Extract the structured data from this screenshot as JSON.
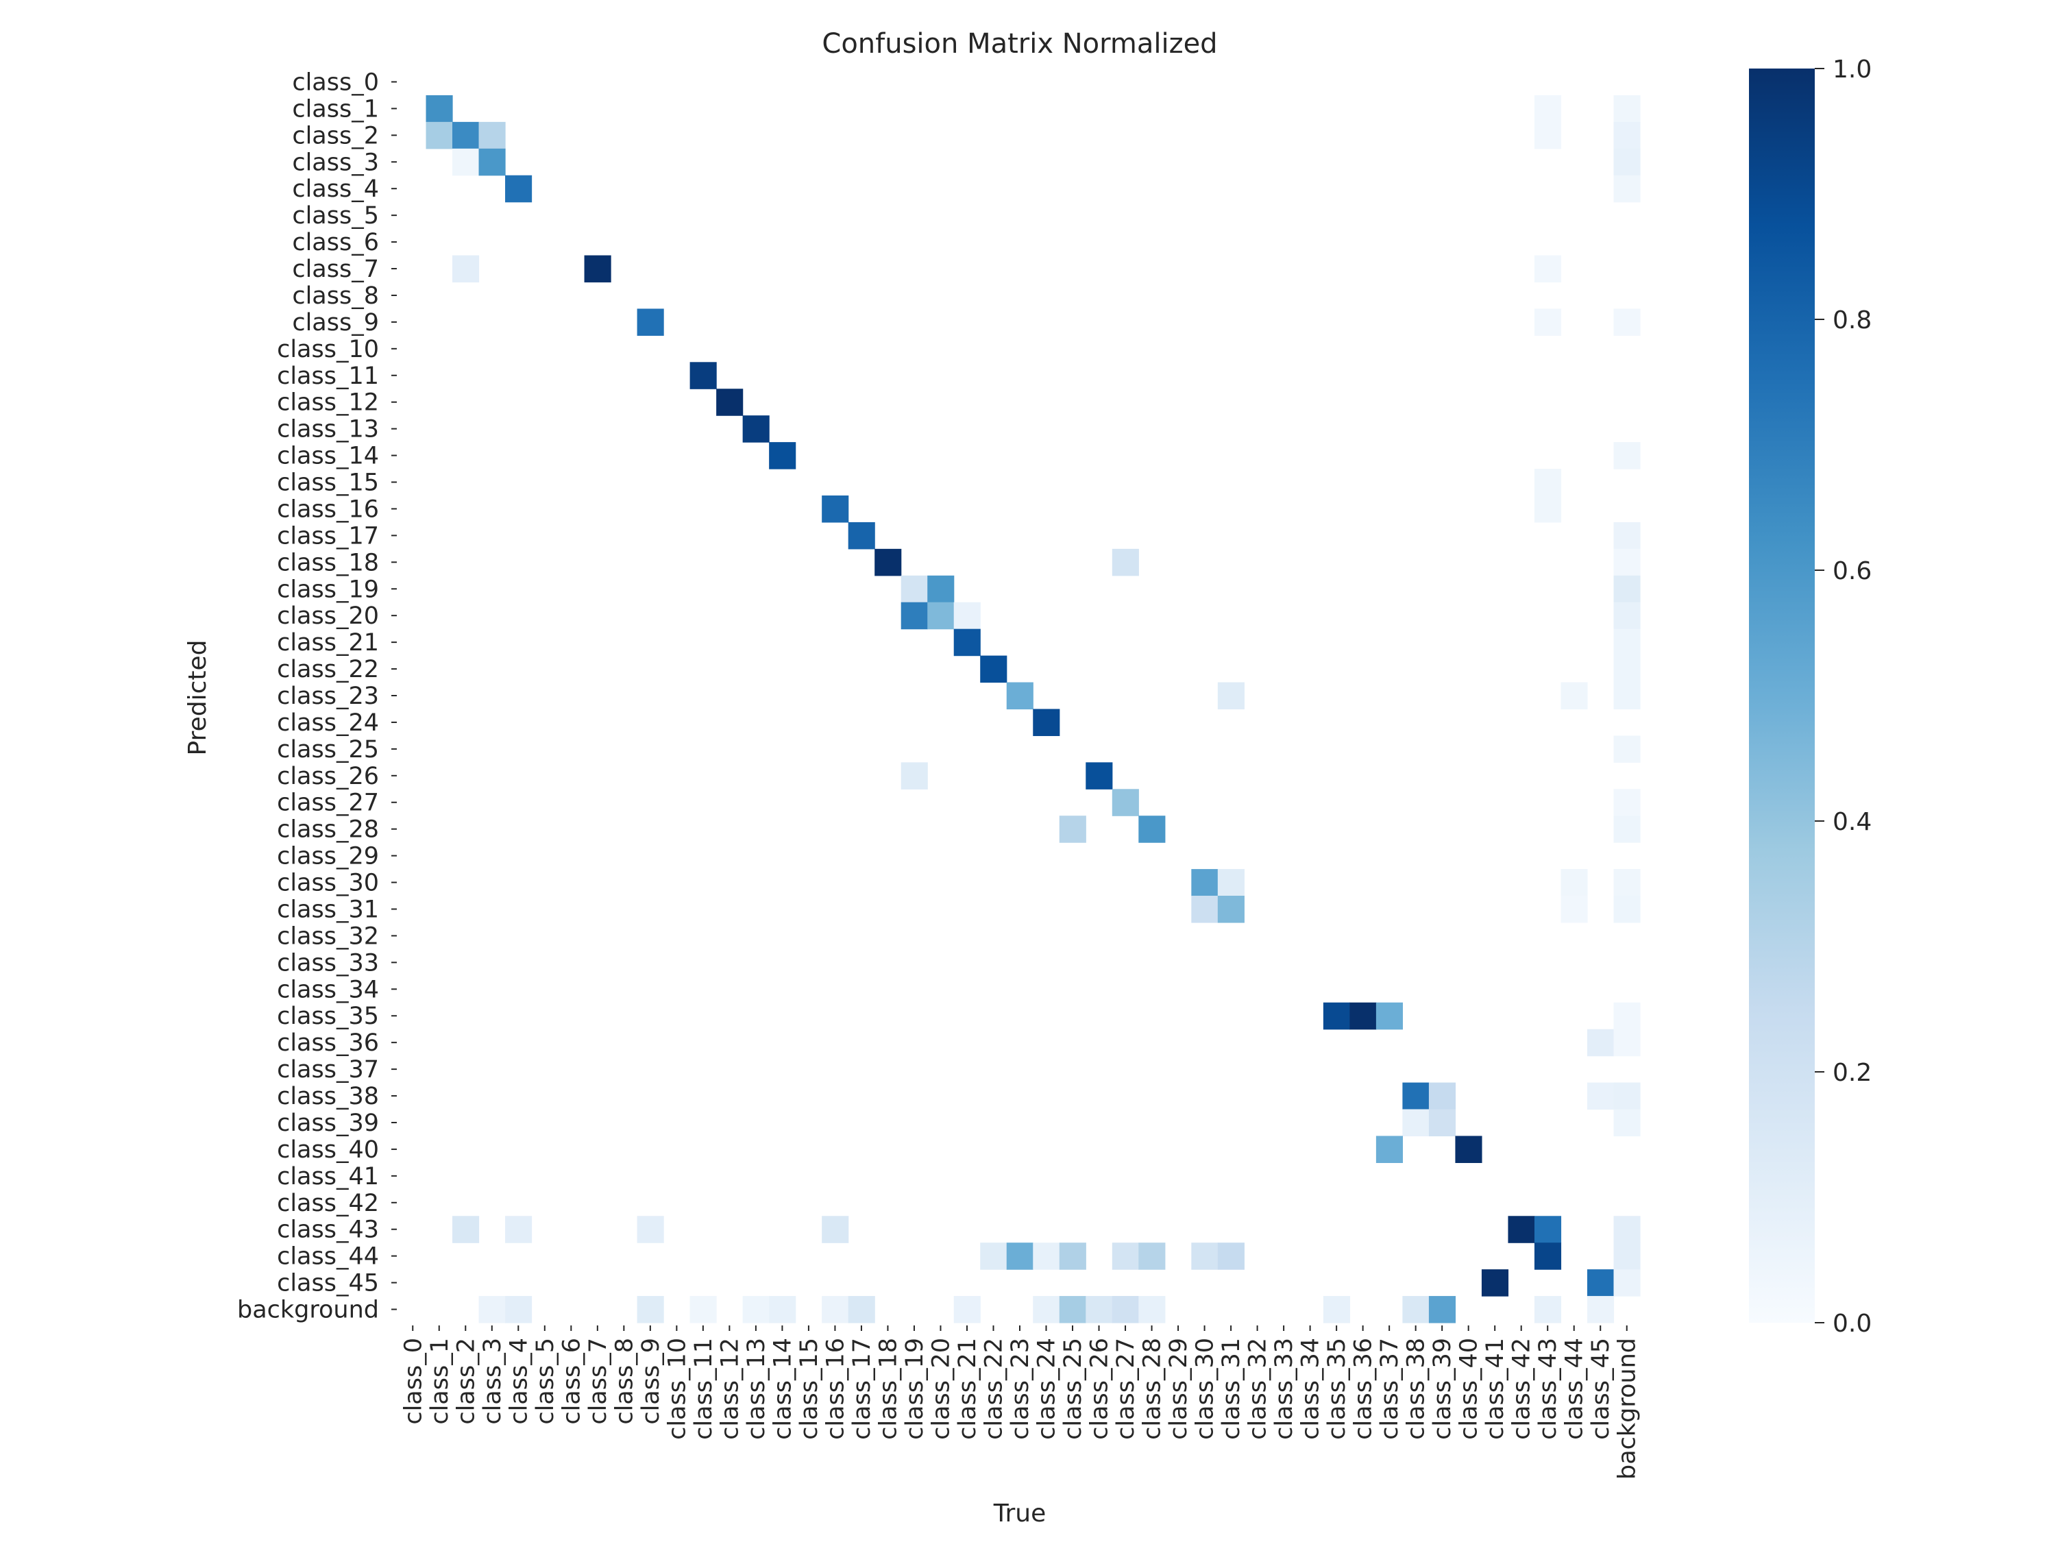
{
  "chart_data": {
    "type": "heatmap",
    "title": "Confusion Matrix Normalized",
    "xlabel": "True",
    "ylabel": "Predicted",
    "colormap": "Blues",
    "colors": {
      "low": "#f7fbff",
      "high": "#08306b",
      "text": "#262626"
    },
    "colorbar": {
      "min": 0.0,
      "max": 1.0,
      "ticks": [
        "0.0",
        "0.2",
        "0.4",
        "0.6",
        "0.8",
        "1.0"
      ]
    },
    "grid": false,
    "legend": "colorbar-right",
    "labels": [
      "class_0",
      "class_1",
      "class_2",
      "class_3",
      "class_4",
      "class_5",
      "class_6",
      "class_7",
      "class_8",
      "class_9",
      "class_10",
      "class_11",
      "class_12",
      "class_13",
      "class_14",
      "class_15",
      "class_16",
      "class_17",
      "class_18",
      "class_19",
      "class_20",
      "class_21",
      "class_22",
      "class_23",
      "class_24",
      "class_25",
      "class_26",
      "class_27",
      "class_28",
      "class_29",
      "class_30",
      "class_31",
      "class_32",
      "class_33",
      "class_34",
      "class_35",
      "class_36",
      "class_37",
      "class_38",
      "class_39",
      "class_40",
      "class_41",
      "class_42",
      "class_43",
      "class_44",
      "class_45",
      "background"
    ],
    "cells": [
      [
        1,
        1,
        0.63
      ],
      [
        1,
        43,
        0.03
      ],
      [
        1,
        46,
        0.04
      ],
      [
        2,
        1,
        0.35
      ],
      [
        2,
        2,
        0.65
      ],
      [
        2,
        3,
        0.3
      ],
      [
        2,
        43,
        0.03
      ],
      [
        2,
        46,
        0.07
      ],
      [
        3,
        2,
        0.04
      ],
      [
        3,
        3,
        0.6
      ],
      [
        3,
        46,
        0.08
      ],
      [
        4,
        4,
        0.75
      ],
      [
        4,
        46,
        0.04
      ],
      [
        7,
        2,
        0.1
      ],
      [
        7,
        7,
        1.0
      ],
      [
        7,
        43,
        0.03
      ],
      [
        9,
        9,
        0.75
      ],
      [
        9,
        43,
        0.03
      ],
      [
        9,
        46,
        0.03
      ],
      [
        11,
        11,
        0.95
      ],
      [
        12,
        12,
        1.0
      ],
      [
        13,
        13,
        0.95
      ],
      [
        14,
        14,
        0.88
      ],
      [
        14,
        46,
        0.04
      ],
      [
        15,
        43,
        0.04
      ],
      [
        16,
        16,
        0.78
      ],
      [
        16,
        43,
        0.04
      ],
      [
        17,
        17,
        0.8
      ],
      [
        17,
        46,
        0.06
      ],
      [
        18,
        18,
        1.0
      ],
      [
        18,
        27,
        0.18
      ],
      [
        18,
        46,
        0.03
      ],
      [
        19,
        19,
        0.18
      ],
      [
        19,
        20,
        0.6
      ],
      [
        19,
        46,
        0.12
      ],
      [
        20,
        19,
        0.7
      ],
      [
        20,
        20,
        0.45
      ],
      [
        20,
        21,
        0.07
      ],
      [
        20,
        46,
        0.08
      ],
      [
        21,
        21,
        0.85
      ],
      [
        21,
        46,
        0.05
      ],
      [
        22,
        22,
        0.88
      ],
      [
        22,
        46,
        0.05
      ],
      [
        23,
        23,
        0.5
      ],
      [
        23,
        31,
        0.12
      ],
      [
        23,
        44,
        0.04
      ],
      [
        23,
        46,
        0.05
      ],
      [
        24,
        24,
        0.9
      ],
      [
        25,
        46,
        0.04
      ],
      [
        26,
        19,
        0.12
      ],
      [
        26,
        26,
        0.88
      ],
      [
        27,
        27,
        0.4
      ],
      [
        27,
        46,
        0.03
      ],
      [
        28,
        25,
        0.3
      ],
      [
        28,
        28,
        0.6
      ],
      [
        28,
        46,
        0.05
      ],
      [
        30,
        30,
        0.55
      ],
      [
        30,
        31,
        0.12
      ],
      [
        30,
        44,
        0.04
      ],
      [
        30,
        46,
        0.04
      ],
      [
        31,
        30,
        0.22
      ],
      [
        31,
        31,
        0.45
      ],
      [
        31,
        44,
        0.03
      ],
      [
        31,
        46,
        0.05
      ],
      [
        35,
        35,
        0.9
      ],
      [
        35,
        36,
        1.0
      ],
      [
        35,
        37,
        0.5
      ],
      [
        35,
        46,
        0.03
      ],
      [
        36,
        45,
        0.1
      ],
      [
        36,
        46,
        0.03
      ],
      [
        38,
        38,
        0.75
      ],
      [
        38,
        39,
        0.25
      ],
      [
        38,
        45,
        0.07
      ],
      [
        38,
        46,
        0.08
      ],
      [
        39,
        38,
        0.08
      ],
      [
        39,
        39,
        0.2
      ],
      [
        39,
        46,
        0.05
      ],
      [
        40,
        37,
        0.5
      ],
      [
        40,
        40,
        1.0
      ],
      [
        43,
        2,
        0.15
      ],
      [
        43,
        4,
        0.1
      ],
      [
        43,
        9,
        0.1
      ],
      [
        43,
        16,
        0.15
      ],
      [
        43,
        42,
        1.0
      ],
      [
        43,
        43,
        0.75
      ],
      [
        43,
        46,
        0.1
      ],
      [
        44,
        22,
        0.12
      ],
      [
        44,
        23,
        0.5
      ],
      [
        44,
        24,
        0.08
      ],
      [
        44,
        25,
        0.32
      ],
      [
        44,
        27,
        0.18
      ],
      [
        44,
        28,
        0.3
      ],
      [
        44,
        30,
        0.18
      ],
      [
        44,
        31,
        0.25
      ],
      [
        44,
        43,
        0.92
      ],
      [
        44,
        46,
        0.1
      ],
      [
        45,
        41,
        1.0
      ],
      [
        45,
        45,
        0.75
      ],
      [
        45,
        46,
        0.06
      ],
      [
        46,
        3,
        0.06
      ],
      [
        46,
        4,
        0.1
      ],
      [
        46,
        9,
        0.12
      ],
      [
        46,
        11,
        0.04
      ],
      [
        46,
        13,
        0.05
      ],
      [
        46,
        14,
        0.08
      ],
      [
        46,
        16,
        0.06
      ],
      [
        46,
        17,
        0.15
      ],
      [
        46,
        21,
        0.07
      ],
      [
        46,
        24,
        0.08
      ],
      [
        46,
        25,
        0.35
      ],
      [
        46,
        26,
        0.15
      ],
      [
        46,
        27,
        0.2
      ],
      [
        46,
        28,
        0.08
      ],
      [
        46,
        35,
        0.08
      ],
      [
        46,
        38,
        0.15
      ],
      [
        46,
        39,
        0.55
      ],
      [
        46,
        43,
        0.08
      ],
      [
        46,
        45,
        0.06
      ]
    ]
  }
}
